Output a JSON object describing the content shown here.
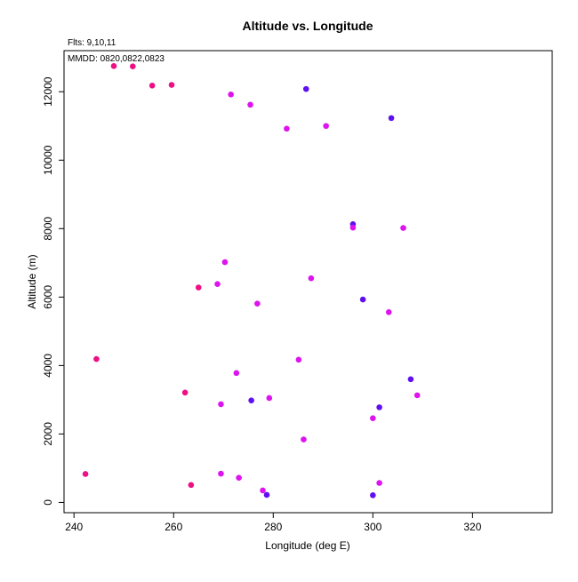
{
  "chart_data": {
    "type": "scatter",
    "title": "Altitude vs. Longitude",
    "xlabel": "Longitude (deg E)",
    "ylabel": "Altitude (m)",
    "annotations": [
      "Flts: 9,10,11",
      "MMDD: 0820,0822,0823"
    ],
    "xlim": [
      238,
      336
    ],
    "ylim": [
      -300,
      13200
    ],
    "xticks": [
      240,
      260,
      280,
      300,
      320
    ],
    "yticks": [
      0,
      2000,
      4000,
      6000,
      8000,
      10000,
      12000
    ],
    "grid": false,
    "colors": {
      "pink": "#ee0f84",
      "magenta": "#dd14f0",
      "violet": "#6010f0",
      "axis": "#000000"
    },
    "points": [
      {
        "x": 248.0,
        "y": 12750,
        "c": "pink"
      },
      {
        "x": 251.8,
        "y": 12740,
        "c": "pink"
      },
      {
        "x": 255.7,
        "y": 12180,
        "c": "pink"
      },
      {
        "x": 259.6,
        "y": 12200,
        "c": "pink"
      },
      {
        "x": 271.5,
        "y": 11920,
        "c": "magenta"
      },
      {
        "x": 275.4,
        "y": 11620,
        "c": "magenta"
      },
      {
        "x": 286.6,
        "y": 12080,
        "c": "violet"
      },
      {
        "x": 282.7,
        "y": 10920,
        "c": "magenta"
      },
      {
        "x": 290.6,
        "y": 11000,
        "c": "magenta"
      },
      {
        "x": 303.7,
        "y": 11230,
        "c": "violet"
      },
      {
        "x": 296.0,
        "y": 8130,
        "c": "violet"
      },
      {
        "x": 296.0,
        "y": 8030,
        "c": "magenta"
      },
      {
        "x": 306.1,
        "y": 8020,
        "c": "magenta"
      },
      {
        "x": 270.3,
        "y": 7020,
        "c": "magenta"
      },
      {
        "x": 287.6,
        "y": 6550,
        "c": "magenta"
      },
      {
        "x": 268.8,
        "y": 6380,
        "c": "magenta"
      },
      {
        "x": 265.0,
        "y": 6280,
        "c": "pink"
      },
      {
        "x": 276.8,
        "y": 5810,
        "c": "magenta"
      },
      {
        "x": 298.0,
        "y": 5930,
        "c": "violet"
      },
      {
        "x": 303.2,
        "y": 5560,
        "c": "magenta"
      },
      {
        "x": 244.5,
        "y": 4190,
        "c": "pink"
      },
      {
        "x": 285.1,
        "y": 4170,
        "c": "magenta"
      },
      {
        "x": 272.6,
        "y": 3780,
        "c": "magenta"
      },
      {
        "x": 307.6,
        "y": 3600,
        "c": "violet"
      },
      {
        "x": 262.3,
        "y": 3210,
        "c": "pink"
      },
      {
        "x": 308.9,
        "y": 3130,
        "c": "magenta"
      },
      {
        "x": 279.2,
        "y": 3050,
        "c": "magenta"
      },
      {
        "x": 275.6,
        "y": 2980,
        "c": "violet"
      },
      {
        "x": 269.5,
        "y": 2870,
        "c": "magenta"
      },
      {
        "x": 301.3,
        "y": 2780,
        "c": "violet"
      },
      {
        "x": 300.0,
        "y": 2460,
        "c": "magenta"
      },
      {
        "x": 286.1,
        "y": 1840,
        "c": "magenta"
      },
      {
        "x": 242.3,
        "y": 830,
        "c": "pink"
      },
      {
        "x": 269.5,
        "y": 840,
        "c": "magenta"
      },
      {
        "x": 273.1,
        "y": 720,
        "c": "magenta"
      },
      {
        "x": 301.3,
        "y": 570,
        "c": "magenta"
      },
      {
        "x": 263.5,
        "y": 510,
        "c": "pink"
      },
      {
        "x": 277.9,
        "y": 350,
        "c": "magenta"
      },
      {
        "x": 278.7,
        "y": 220,
        "c": "violet"
      },
      {
        "x": 300.0,
        "y": 210,
        "c": "violet"
      }
    ]
  }
}
